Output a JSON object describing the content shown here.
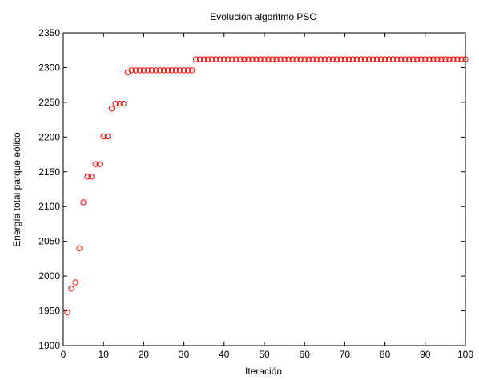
{
  "chart_data": {
    "type": "scatter",
    "title": "Evolución algoritmo PSO",
    "xlabel": "Iteración",
    "ylabel": "Energía total parque eólico",
    "xlim": [
      0,
      100
    ],
    "ylim": [
      1900,
      2350
    ],
    "xticks": [
      0,
      10,
      20,
      30,
      40,
      50,
      60,
      70,
      80,
      90,
      100
    ],
    "yticks": [
      1900,
      1950,
      2000,
      2050,
      2100,
      2150,
      2200,
      2250,
      2300,
      2350
    ],
    "grid": false,
    "legend": "none",
    "marker": "circle-open",
    "marker_color": "#ff0000",
    "series": [
      {
        "x": [
          1,
          2,
          3,
          4,
          5,
          6,
          7,
          8,
          9,
          10,
          11,
          12,
          13,
          14,
          15,
          16,
          17,
          18,
          19,
          20,
          21,
          22,
          23,
          24,
          25,
          26,
          27,
          28,
          29,
          30,
          31,
          32,
          33,
          34,
          35,
          36,
          37,
          38,
          39,
          40,
          41,
          42,
          43,
          44,
          45,
          46,
          47,
          48,
          49,
          50,
          51,
          52,
          53,
          54,
          55,
          56,
          57,
          58,
          59,
          60,
          61,
          62,
          63,
          64,
          65,
          66,
          67,
          68,
          69,
          70,
          71,
          72,
          73,
          74,
          75,
          76,
          77,
          78,
          79,
          80,
          81,
          82,
          83,
          84,
          85,
          86,
          87,
          88,
          89,
          90,
          91,
          92,
          93,
          94,
          95,
          96,
          97,
          98,
          99,
          100
        ],
        "y": [
          1948,
          1982,
          1991,
          2040,
          2106,
          2143,
          2143,
          2161,
          2161,
          2201,
          2201,
          2241,
          2248,
          2248,
          2248,
          2293,
          2296,
          2296,
          2296,
          2296,
          2296,
          2296,
          2296,
          2296,
          2296,
          2296,
          2296,
          2296,
          2296,
          2296,
          2296,
          2296,
          2312,
          2312,
          2312,
          2312,
          2312,
          2312,
          2312,
          2312,
          2312,
          2312,
          2312,
          2312,
          2312,
          2312,
          2312,
          2312,
          2312,
          2312,
          2312,
          2312,
          2312,
          2312,
          2312,
          2312,
          2312,
          2312,
          2312,
          2312,
          2312,
          2312,
          2312,
          2312,
          2312,
          2312,
          2312,
          2312,
          2312,
          2312,
          2312,
          2312,
          2312,
          2312,
          2312,
          2312,
          2312,
          2312,
          2312,
          2312,
          2312,
          2312,
          2312,
          2312,
          2312,
          2312,
          2312,
          2312,
          2312,
          2312,
          2312,
          2312,
          2312,
          2312,
          2312,
          2312,
          2312,
          2312,
          2312,
          2312
        ]
      }
    ]
  }
}
